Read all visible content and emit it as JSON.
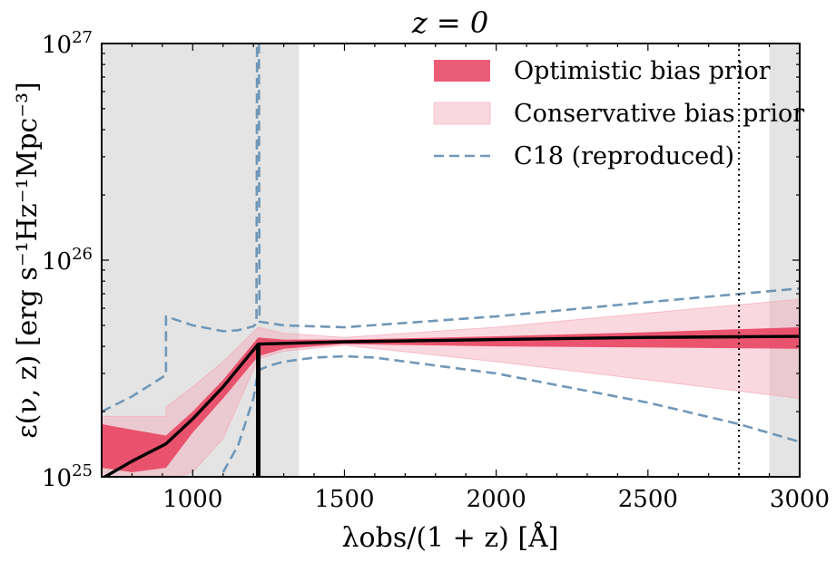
{
  "chart_data": {
    "type": "line",
    "title": "z = 0",
    "xlabel": "λobs/(1 + z) [Å]",
    "ylabel": "ε(ν, z) [erg s⁻¹Hz⁻¹Mpc⁻³]",
    "xlim": [
      700,
      3000
    ],
    "ylim": [
      1e+25,
      1e+27
    ],
    "yscale": "log",
    "x_ticks": [
      {
        "value": 1000,
        "label": "1000"
      },
      {
        "value": 1500,
        "label": "1500"
      },
      {
        "value": 2000,
        "label": "2000"
      },
      {
        "value": 2500,
        "label": "2500"
      },
      {
        "value": 3000,
        "label": "3000"
      }
    ],
    "y_ticks": [
      {
        "value": 1e+25,
        "base": "10",
        "exp": "25"
      },
      {
        "value": 1e+26,
        "base": "10",
        "exp": "26"
      },
      {
        "value": 1e+27,
        "base": "10",
        "exp": "27"
      }
    ],
    "legend_position": "top-right",
    "legend": [
      {
        "label": "Optimistic bias prior",
        "kind": "band",
        "color": "#e8415f",
        "opacity": 0.85
      },
      {
        "label": "Conservative bias prior",
        "kind": "band",
        "color": "#f4a9b8",
        "opacity": 0.45
      },
      {
        "label": "C18 (reproduced)",
        "kind": "dashed",
        "color": "#7097b7"
      }
    ],
    "shaded_regions": [
      {
        "x": [
          700,
          1350
        ],
        "color": "#d9d9d9"
      },
      {
        "x": [
          2900,
          3000
        ],
        "color": "#d9d9d9"
      }
    ],
    "vertical_lines": [
      {
        "x": 2800,
        "style": "dotted",
        "color": "#000000"
      },
      {
        "x": 1216,
        "style": "solid",
        "color": "#000000",
        "y": [
          1e+25,
          4.1e+25
        ]
      }
    ],
    "bands": [
      {
        "name": "Conservative bias prior",
        "color": "#f4a9b8",
        "x": [
          700,
          912,
          912,
          1000,
          1100,
          1216,
          1300,
          1500,
          2000,
          2500,
          3000
        ],
        "upper": [
          1.9e+25,
          1.9e+25,
          2.1e+25,
          2.6e+25,
          3.4e+25,
          4.9e+25,
          4.6e+25,
          4.4e+25,
          4.9e+25,
          5.7e+25,
          6.6e+25
        ],
        "lower": [
          8.5e+24,
          8.5e+24,
          9.7e+24,
          1.05e+25,
          1.5e+25,
          3.5e+25,
          3.8e+25,
          4.05e+25,
          3.4e+25,
          2.8e+25,
          2.3e+25
        ]
      },
      {
        "name": "Optimistic bias prior",
        "color": "#e8415f",
        "x": [
          700,
          800,
          912,
          1000,
          1100,
          1216,
          1300,
          1500,
          2000,
          2500,
          3000
        ],
        "upper": [
          1.75e+25,
          1.65e+25,
          1.55e+25,
          2e+25,
          2.8e+25,
          4.4e+25,
          4.3e+25,
          4.3e+25,
          4.45e+25,
          4.65e+25,
          4.9e+25
        ],
        "lower": [
          1.1e+25,
          1.05e+25,
          1.1e+25,
          1.6e+25,
          2.3e+25,
          3.6e+25,
          3.9e+25,
          4.1e+25,
          4e+25,
          3.95e+25,
          3.9e+25
        ]
      }
    ],
    "series": [
      {
        "name": "Optimistic bias prior",
        "style": "solid",
        "color": "#000000",
        "x": [
          700,
          800,
          912,
          1000,
          1100,
          1216,
          1500,
          2000,
          2500,
          3000
        ],
        "y": [
          9.8e+24,
          1.18e+25,
          1.42e+25,
          1.85e+25,
          2.6e+25,
          4.1e+25,
          4.2e+25,
          4.3e+25,
          4.4e+25,
          4.45e+25
        ]
      },
      {
        "name": "C18 (reproduced)",
        "style": "dashed",
        "color": "#7097b7",
        "x": [
          700,
          800,
          912,
          912,
          1000,
          1100,
          1150,
          1200,
          1210,
          1212,
          1214,
          1216,
          1218,
          1220,
          1300,
          1500,
          2000,
          2500,
          3000
        ],
        "y": [
          2e+25,
          2.35e+25,
          2.95e+25,
          5.5e+25,
          5e+25,
          4.7e+25,
          4.75e+25,
          4.95e+25,
          5.1e+25,
          1e+27,
          1e+27,
          1e+27,
          1e+27,
          5.2e+25,
          5e+25,
          4.9e+25,
          5.5e+25,
          6.4e+25,
          7.4e+25
        ]
      },
      {
        "name": "C18 (reproduced)",
        "style": "dashed",
        "color": "#7097b7",
        "x": [
          1070,
          1100,
          1150,
          1200,
          1216,
          1250,
          1300,
          1400,
          1500,
          1600,
          2000,
          2500,
          2800,
          3000
        ],
        "y": [
          9.2e+24,
          1.05e+25,
          1.4e+25,
          2.3e+25,
          3.1e+25,
          3.25e+25,
          3.4e+25,
          3.55e+25,
          3.6e+25,
          3.55e+25,
          3e+25,
          2.2e+25,
          1.75e+25,
          1.45e+25
        ]
      }
    ]
  }
}
